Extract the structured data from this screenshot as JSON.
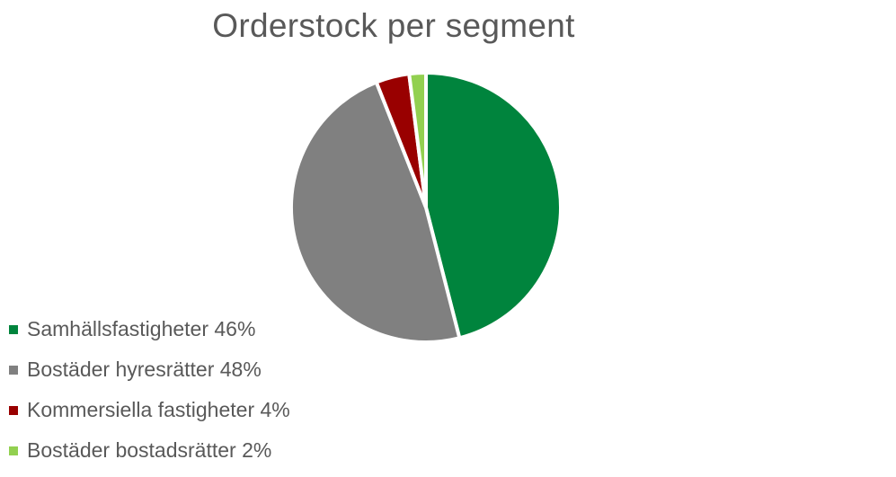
{
  "chart_data": {
    "type": "pie",
    "title": "Orderstock per segment",
    "legend_position": "bottom-left",
    "slices": [
      {
        "label": "Samhällsfastigheter",
        "value": 46,
        "display": "Samhällsfastigheter 46%",
        "color": "#00843d"
      },
      {
        "label": "Bostäder hyresrätter",
        "value": 48,
        "display": "Bostäder hyresrätter 48%",
        "color": "#808080"
      },
      {
        "label": "Kommersiella fastigheter",
        "value": 4,
        "display": "Kommersiella fastigheter 4%",
        "color": "#990000"
      },
      {
        "label": "Bostäder bostadsrätter",
        "value": 2,
        "display": "Bostäder bostadsrätter 2%",
        "color": "#92d050"
      }
    ]
  }
}
